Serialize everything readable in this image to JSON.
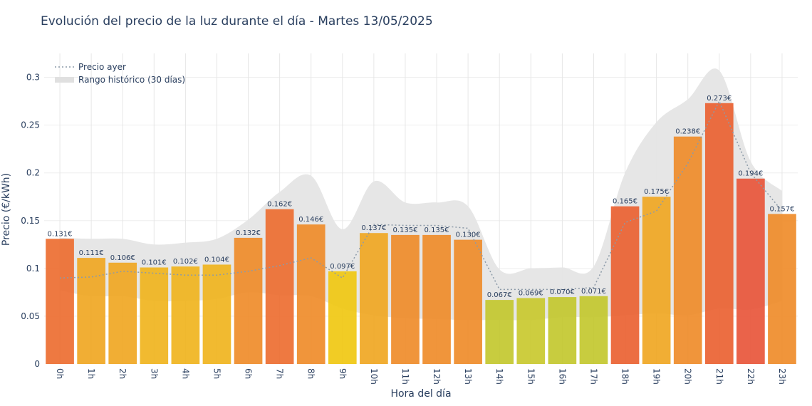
{
  "chart_data": {
    "type": "bar",
    "title": "Evolución del precio de la luz durante el día - Martes 13/05/2025",
    "xlabel": "Hora del día",
    "ylabel": "Precio (€/kWh)",
    "ylim": [
      0,
      0.325
    ],
    "yticks": [
      0,
      0.05,
      0.1,
      0.15,
      0.2,
      0.25,
      0.3
    ],
    "ytick_labels": [
      "0",
      "0.05",
      "0.1",
      "0.15",
      "0.2",
      "0.25",
      "0.3"
    ],
    "grid": true,
    "legend_position": "top-left",
    "categories": [
      "0h",
      "1h",
      "2h",
      "3h",
      "4h",
      "5h",
      "6h",
      "7h",
      "8h",
      "9h",
      "10h",
      "11h",
      "12h",
      "13h",
      "14h",
      "15h",
      "16h",
      "17h",
      "18h",
      "19h",
      "20h",
      "21h",
      "22h",
      "23h"
    ],
    "series": [
      {
        "type": "bar",
        "values": [
          0.131,
          0.111,
          0.106,
          0.101,
          0.102,
          0.104,
          0.132,
          0.162,
          0.146,
          0.097,
          0.137,
          0.135,
          0.135,
          0.13,
          0.067,
          0.069,
          0.07,
          0.071,
          0.165,
          0.175,
          0.238,
          0.273,
          0.194,
          0.157
        ],
        "labels": [
          "0.131€",
          "0.111€",
          "0.106€",
          "0.101€",
          "0.102€",
          "0.104€",
          "0.132€",
          "0.162€",
          "0.146€",
          "0.097€",
          "0.137€",
          "0.135€",
          "0.135€",
          "0.130€",
          "0.067€",
          "0.069€",
          "0.070€",
          "0.071€",
          "0.165€",
          "0.175€",
          "0.238€",
          "0.273€",
          "0.194€",
          "0.157€"
        ],
        "colors": [
          "#ec6a2c",
          "#f0a51e",
          "#f0a51e",
          "#f0b21a",
          "#f0b21a",
          "#f0b21a",
          "#ee8a26",
          "#ec6a2c",
          "#ee8a26",
          "#f0c70d",
          "#f0a51e",
          "#ee8a26",
          "#ee8a26",
          "#ee8a26",
          "#c2c62a",
          "#c8c82a",
          "#c2c62a",
          "#c2c62a",
          "#ea5e2e",
          "#f0a51e",
          "#ee8a26",
          "#ea5e2e",
          "#e85236",
          "#ee8a26"
        ]
      },
      {
        "name": "Precio ayer",
        "type": "line",
        "style": "dotted",
        "color": "#8c9aa8",
        "values": [
          0.09,
          0.091,
          0.097,
          0.095,
          0.093,
          0.093,
          0.097,
          0.103,
          0.111,
          0.09,
          0.146,
          0.145,
          0.145,
          0.142,
          0.078,
          0.078,
          0.078,
          0.08,
          0.148,
          0.16,
          0.21,
          0.275,
          0.2,
          0.16
        ]
      },
      {
        "name": "Rango histórico (30 días)",
        "type": "band",
        "color": "#e5e5e5",
        "upper": [
          0.132,
          0.131,
          0.131,
          0.125,
          0.127,
          0.131,
          0.151,
          0.18,
          0.197,
          0.141,
          0.191,
          0.169,
          0.169,
          0.165,
          0.099,
          0.1,
          0.101,
          0.102,
          0.2,
          0.253,
          0.277,
          0.307,
          0.212,
          0.181
        ],
        "lower": [
          0.077,
          0.071,
          0.071,
          0.066,
          0.066,
          0.068,
          0.075,
          0.072,
          0.071,
          0.058,
          0.051,
          0.048,
          0.047,
          0.046,
          0.046,
          0.046,
          0.049,
          0.049,
          0.051,
          0.053,
          0.051,
          0.058,
          0.057,
          0.066
        ]
      }
    ]
  }
}
